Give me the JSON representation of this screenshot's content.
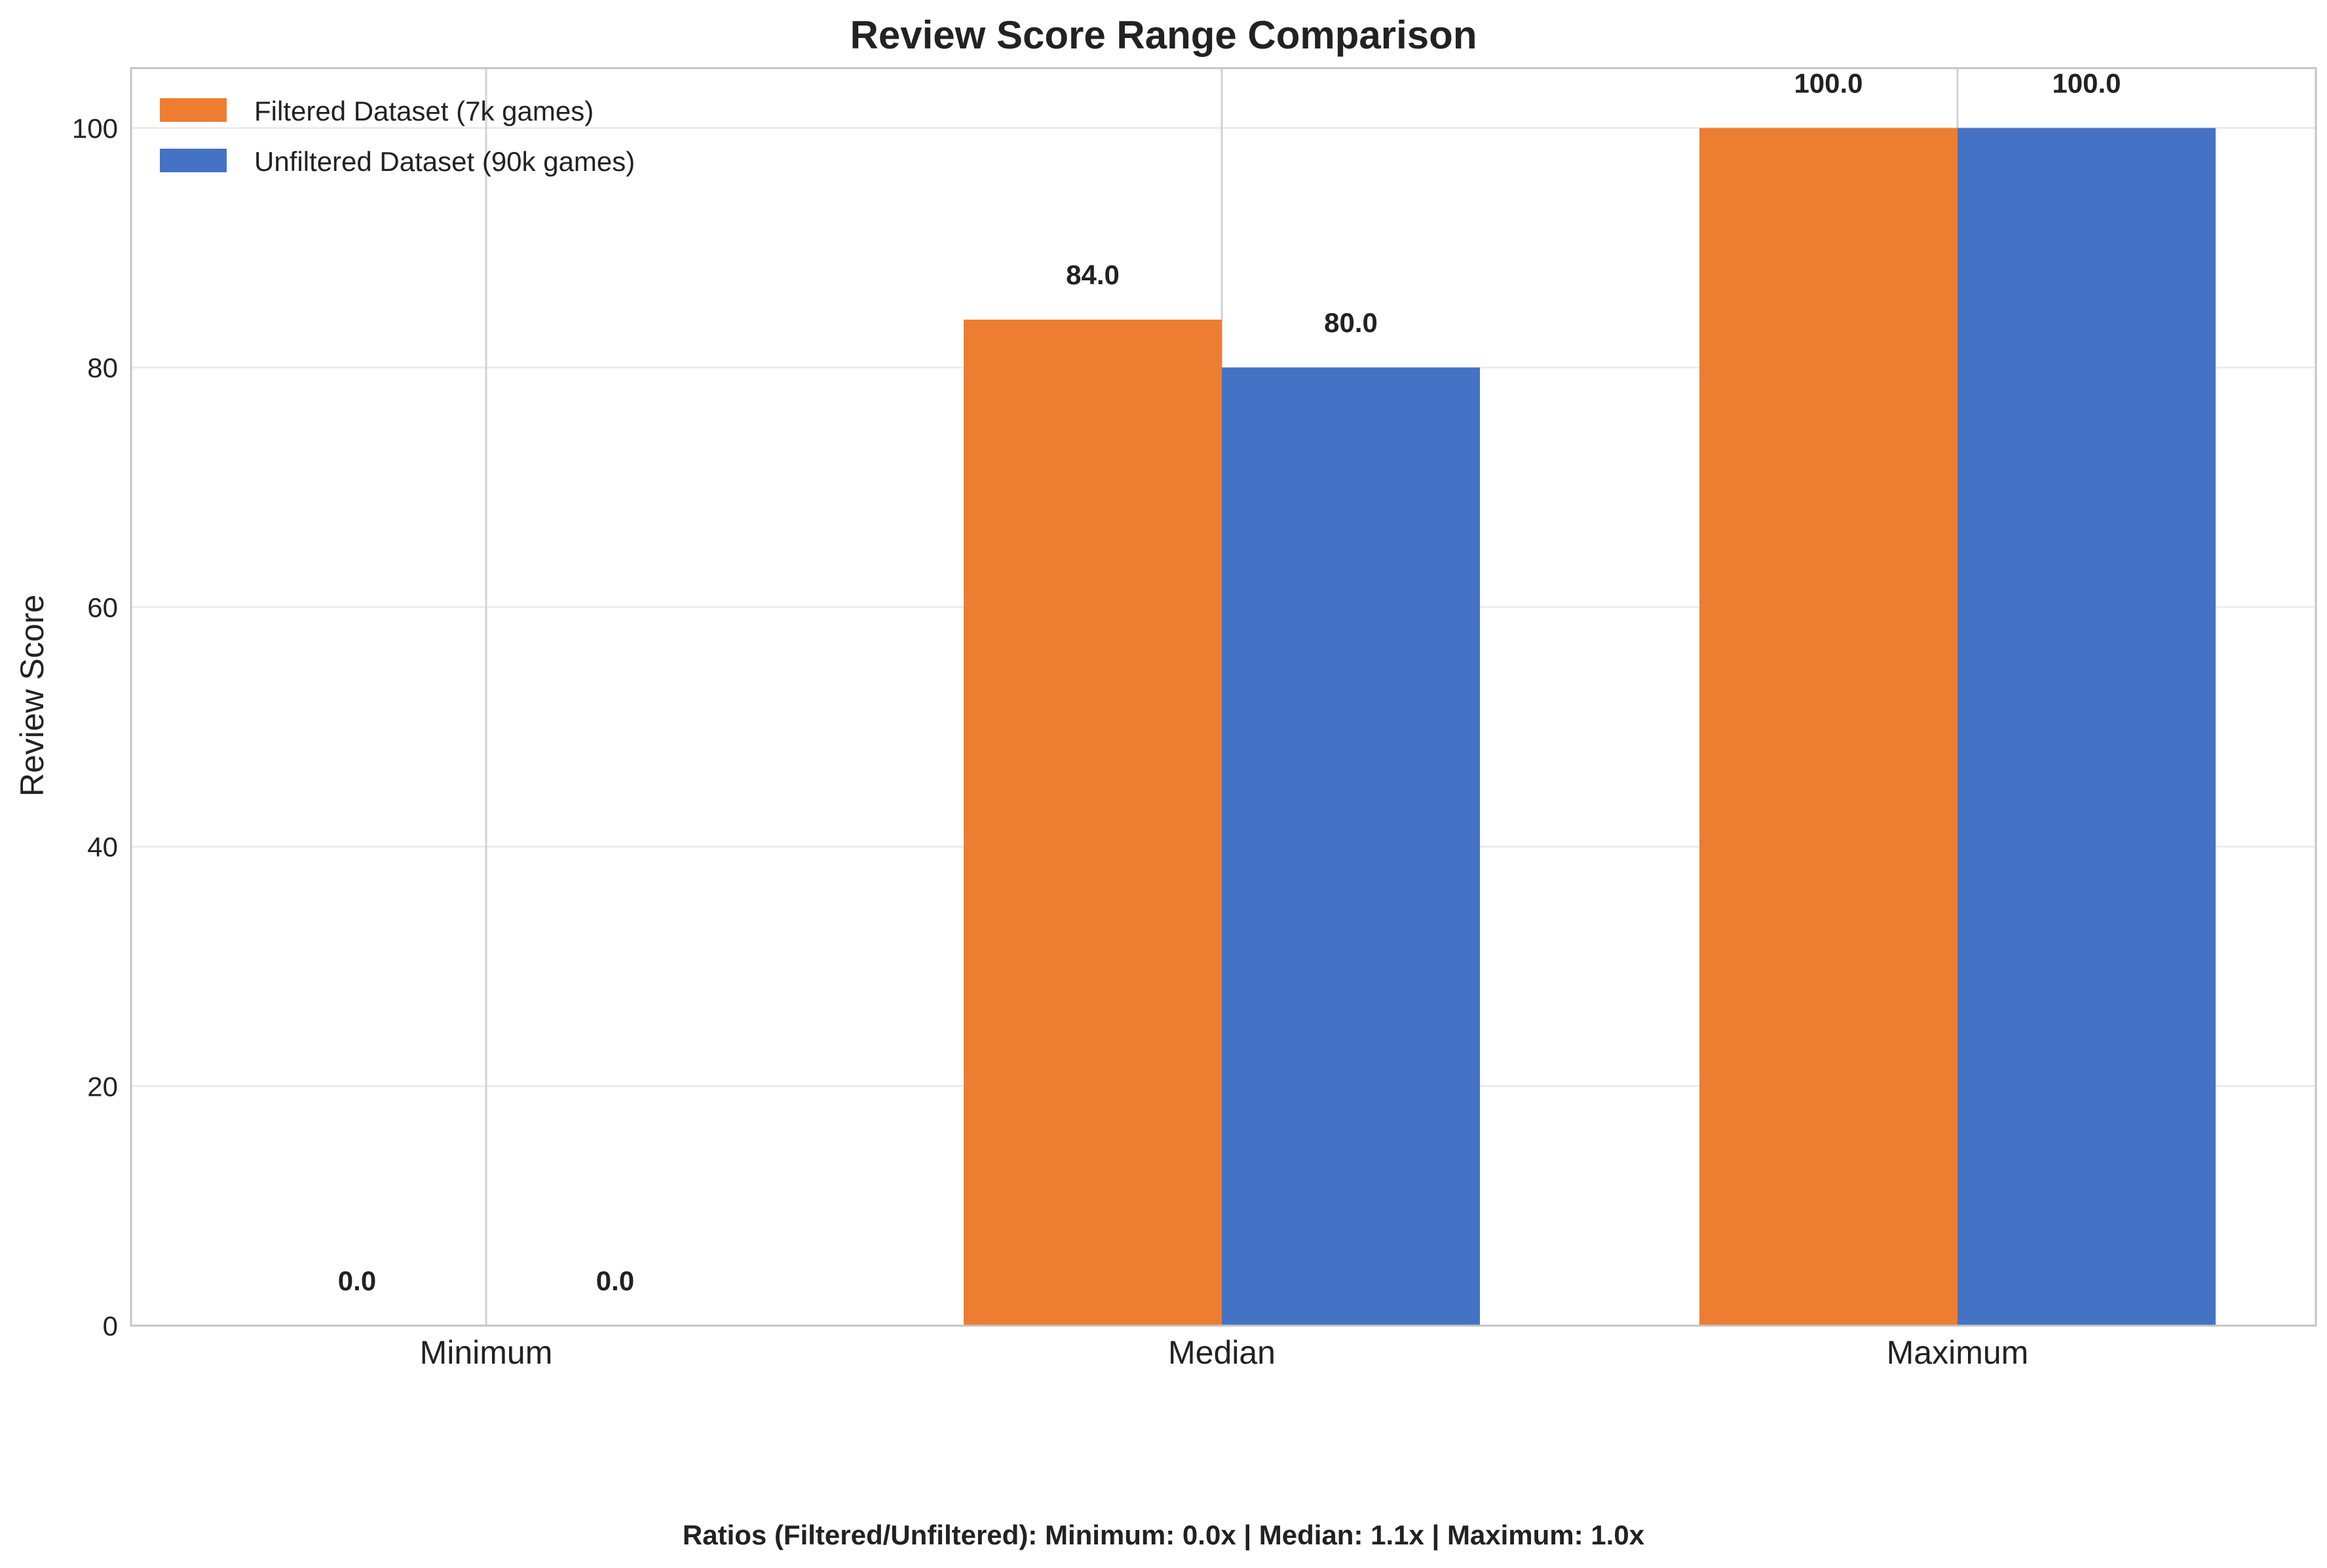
{
  "chart_data": {
    "type": "bar",
    "title": "Review Score Range Comparison",
    "xlabel": "",
    "ylabel": "Review Score",
    "categories": [
      "Minimum",
      "Median",
      "Maximum"
    ],
    "series": [
      {
        "name": "Filtered Dataset (7k games)",
        "color": "#ED7D31",
        "values": [
          0.0,
          84.0,
          100.0
        ],
        "labels": [
          "0.0",
          "84.0",
          "100.0"
        ]
      },
      {
        "name": "Unfiltered Dataset (90k games)",
        "color": "#4472C4",
        "values": [
          0.0,
          80.0,
          100.0
        ],
        "labels": [
          "0.0",
          "80.0",
          "100.0"
        ]
      }
    ],
    "ylim": [
      0,
      105
    ],
    "yticks": [
      0,
      20,
      40,
      60,
      80,
      100
    ],
    "ytick_labels": [
      "0",
      "20",
      "40",
      "60",
      "80",
      "100"
    ],
    "grid": true,
    "legend_position": "top-left"
  },
  "footnote": "Ratios (Filtered/Unfiltered): Minimum: 0.0x  |  Median: 1.1x  |  Maximum: 1.0x"
}
